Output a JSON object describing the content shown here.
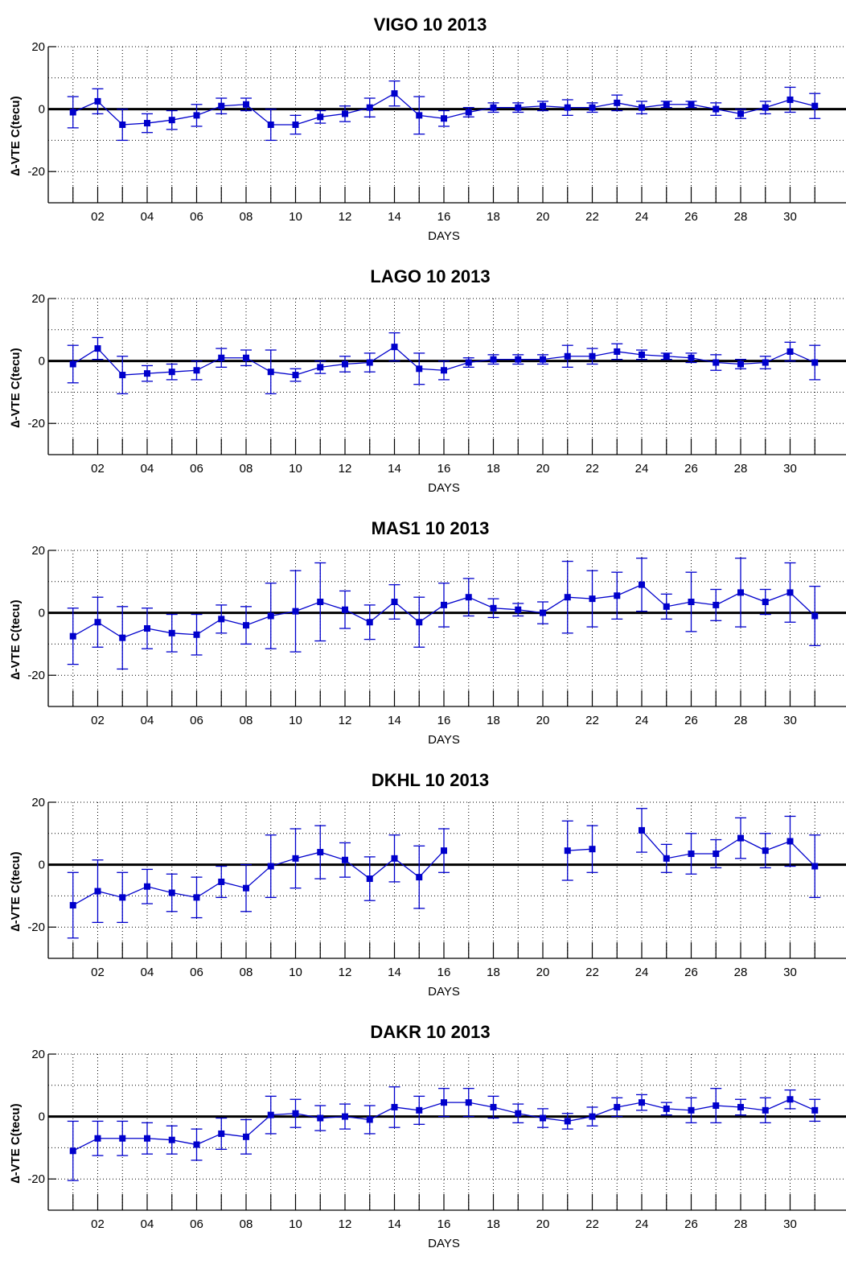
{
  "colors": {
    "series": "#0000cc",
    "zero_line": "#000000",
    "grid": "#000000",
    "axes": "#000000"
  },
  "chart_data": [
    {
      "type": "line",
      "title": "VIGO  10 2013",
      "xlabel": "DAYS",
      "ylabel": "∆-VTE C(tecu)",
      "xlim": [
        0,
        31
      ],
      "ylim": [
        -30,
        20
      ],
      "grid": true,
      "xticks": [
        "02",
        "04",
        "06",
        "08",
        "10",
        "12",
        "14",
        "16",
        "18",
        "20",
        "22",
        "24",
        "26",
        "28",
        "30"
      ],
      "yticks": [
        "20",
        "0",
        "-20"
      ],
      "series": [
        {
          "x": [
            1,
            2,
            3,
            4,
            5,
            6,
            7,
            8,
            9,
            10,
            11,
            12,
            13,
            14,
            15,
            16,
            17,
            18,
            19,
            20,
            21,
            22,
            23,
            24,
            25,
            26,
            27,
            28,
            29,
            30,
            31
          ],
          "y": [
            -1,
            2.5,
            -5,
            -4.5,
            -3.5,
            -2,
            1,
            1.5,
            -5,
            -5,
            -2.5,
            -1.5,
            0.5,
            5,
            -2,
            -3,
            -1,
            0.5,
            0.5,
            1,
            0.5,
            0.5,
            2,
            0.5,
            1.5,
            1.5,
            0,
            -1.5,
            0.5,
            3,
            1
          ],
          "err": [
            5,
            4,
            5,
            3,
            3,
            3.5,
            2.5,
            2,
            5,
            3,
            2,
            2.5,
            3,
            4,
            6,
            2.5,
            1.5,
            1.5,
            1.5,
            1.5,
            2.5,
            1.5,
            2.5,
            2,
            1,
            1,
            2,
            1.5,
            2,
            4,
            4
          ]
        }
      ]
    },
    {
      "type": "line",
      "title": "LAGO  10 2013",
      "xlabel": "DAYS",
      "ylabel": "∆-VTE C(tecu)",
      "xlim": [
        0,
        31
      ],
      "ylim": [
        -30,
        20
      ],
      "grid": true,
      "xticks": [
        "02",
        "04",
        "06",
        "08",
        "10",
        "12",
        "14",
        "16",
        "18",
        "20",
        "22",
        "24",
        "26",
        "28",
        "30"
      ],
      "yticks": [
        "20",
        "0",
        "-20"
      ],
      "series": [
        {
          "x": [
            1,
            2,
            3,
            4,
            5,
            6,
            7,
            8,
            9,
            10,
            11,
            12,
            13,
            14,
            15,
            16,
            17,
            18,
            19,
            20,
            21,
            22,
            23,
            24,
            25,
            26,
            27,
            28,
            29,
            30,
            31
          ],
          "y": [
            -1,
            4,
            -4.5,
            -4,
            -3.5,
            -3,
            1,
            1,
            -3.5,
            -4.5,
            -2,
            -1,
            -0.5,
            4.5,
            -2.5,
            -3,
            -0.5,
            0.5,
            0.5,
            0.5,
            1.5,
            1.5,
            3,
            2,
            1.5,
            1,
            -0.5,
            -1,
            -0.5,
            3,
            -0.5
          ],
          "err": [
            6,
            3.5,
            6,
            2.5,
            2.5,
            3,
            3,
            2.5,
            7,
            2,
            2,
            2.5,
            3,
            4.5,
            5,
            3,
            1.5,
            1.5,
            1.5,
            1.5,
            3.5,
            2.5,
            2.5,
            1.5,
            1,
            1.5,
            2.5,
            1.5,
            2,
            3,
            5.5
          ]
        }
      ]
    },
    {
      "type": "line",
      "title": "MAS1  10 2013",
      "xlabel": "DAYS",
      "ylabel": "∆-VTE C(tecu)",
      "xlim": [
        0,
        31
      ],
      "ylim": [
        -30,
        20
      ],
      "grid": true,
      "xticks": [
        "02",
        "04",
        "06",
        "08",
        "10",
        "12",
        "14",
        "16",
        "18",
        "20",
        "22",
        "24",
        "26",
        "28",
        "30"
      ],
      "yticks": [
        "20",
        "0",
        "-20"
      ],
      "series": [
        {
          "x": [
            1,
            2,
            3,
            4,
            5,
            6,
            7,
            8,
            9,
            10,
            11,
            12,
            13,
            14,
            15,
            16,
            17,
            18,
            19,
            20,
            21,
            22,
            23,
            24,
            25,
            26,
            27,
            28,
            29,
            30,
            31
          ],
          "y": [
            -7.5,
            -3,
            -8,
            -5,
            -6.5,
            -7,
            -2,
            -4,
            -1,
            0.5,
            3.5,
            1,
            -3,
            3.5,
            -3,
            2.5,
            5,
            1.5,
            1,
            0,
            5,
            4.5,
            5.5,
            9,
            2,
            3.5,
            2.5,
            6.5,
            3.5,
            6.5,
            -1
          ],
          "err": [
            9,
            8,
            10,
            6.5,
            6,
            6.5,
            4.5,
            6,
            10.5,
            13,
            12.5,
            6,
            5.5,
            5.5,
            8,
            7,
            6,
            3,
            2,
            3.5,
            11.5,
            9,
            7.5,
            8.5,
            4,
            9.5,
            5,
            11,
            4,
            9.5,
            9.5
          ]
        }
      ]
    },
    {
      "type": "line",
      "title": "DKHL  10 2013",
      "xlabel": "DAYS",
      "ylabel": "∆-VTE C(tecu)",
      "xlim": [
        0,
        31
      ],
      "ylim": [
        -30,
        20
      ],
      "grid": true,
      "xticks": [
        "02",
        "04",
        "06",
        "08",
        "10",
        "12",
        "14",
        "16",
        "18",
        "20",
        "22",
        "24",
        "26",
        "28",
        "30"
      ],
      "yticks": [
        "20",
        "0",
        "-20"
      ],
      "series": [
        {
          "x": [
            1,
            2,
            3,
            4,
            5,
            6,
            7,
            8,
            9,
            10,
            11,
            12,
            13,
            14,
            15,
            16,
            21,
            22,
            24,
            25,
            26,
            27,
            28,
            29,
            30,
            31
          ],
          "y": [
            -13,
            -8.5,
            -10.5,
            -7,
            -9,
            -10.5,
            -5.5,
            -7.5,
            -0.5,
            2,
            4,
            1.5,
            -4.5,
            2,
            -4,
            4.5,
            4.5,
            5,
            11,
            2,
            3.5,
            3.5,
            8.5,
            4.5,
            7.5,
            -0.5
          ],
          "err": [
            10.5,
            10,
            8,
            5.5,
            6,
            6.5,
            5,
            7.5,
            10,
            9.5,
            8.5,
            5.5,
            7,
            7.5,
            10,
            7,
            9.5,
            7.5,
            7,
            4.5,
            6.5,
            4.5,
            6.5,
            5.5,
            8,
            10
          ]
        }
      ]
    },
    {
      "type": "line",
      "title": "DAKR  10 2013",
      "xlabel": "DAYS",
      "ylabel": "∆-VTE C(tecu)",
      "xlim": [
        0,
        31
      ],
      "ylim": [
        -30,
        20
      ],
      "grid": true,
      "xticks": [
        "02",
        "04",
        "06",
        "08",
        "10",
        "12",
        "14",
        "16",
        "18",
        "20",
        "22",
        "24",
        "26",
        "28",
        "30"
      ],
      "yticks": [
        "20",
        "0",
        "-20"
      ],
      "series": [
        {
          "x": [
            1,
            2,
            3,
            4,
            5,
            6,
            7,
            8,
            9,
            10,
            11,
            12,
            13,
            14,
            15,
            16,
            17,
            18,
            19,
            20,
            21,
            22,
            23,
            24,
            25,
            26,
            27,
            28,
            29,
            30,
            31
          ],
          "y": [
            -11,
            -7,
            -7,
            -7,
            -7.5,
            -9,
            -5.5,
            -6.5,
            0.5,
            1,
            -0.5,
            0,
            -1,
            3,
            2,
            4.5,
            4.5,
            3,
            1,
            -0.5,
            -1.5,
            0,
            3,
            4.5,
            2.5,
            2,
            3.5,
            3,
            2,
            5.5,
            2
          ],
          "err": [
            9.5,
            5.5,
            5.5,
            5,
            4.5,
            5,
            5,
            5.5,
            6,
            4.5,
            4,
            4,
            4.5,
            6.5,
            4.5,
            4.5,
            4.5,
            3.5,
            3,
            3,
            2.5,
            3,
            3,
            2.5,
            2,
            4,
            5.5,
            2.5,
            4,
            3,
            3.5
          ]
        }
      ]
    }
  ]
}
